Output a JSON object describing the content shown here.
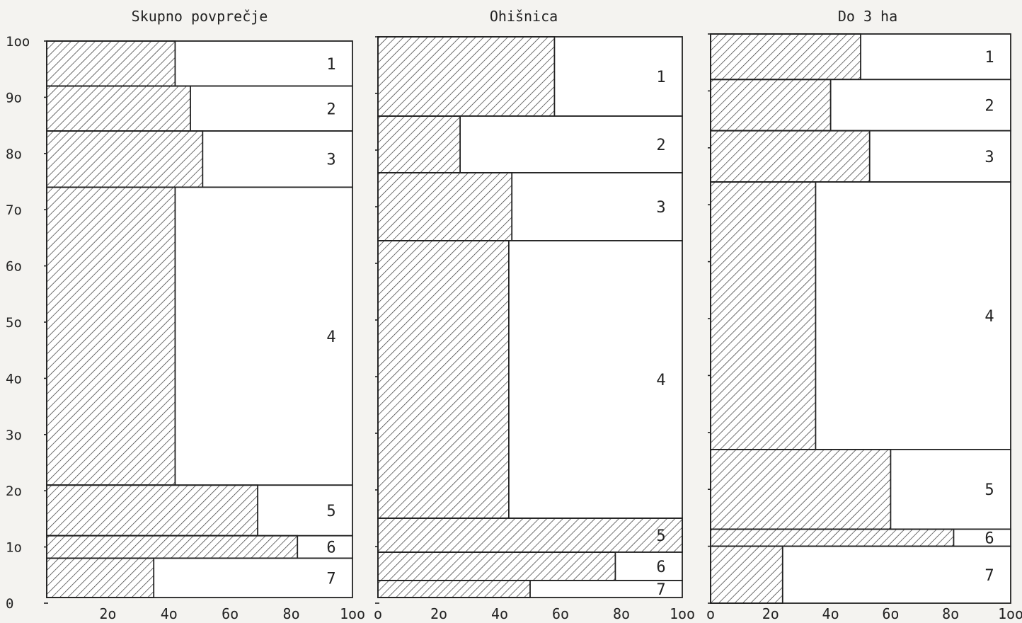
{
  "chart_data": [
    {
      "type": "bar",
      "title": "Skupno povprečje",
      "ylim": [
        0,
        100
      ],
      "xlim": [
        0,
        100
      ],
      "yticks": [
        "0",
        "1o",
        "2o",
        "3o",
        "4o",
        "5o",
        "6o",
        "7o",
        "8o",
        "9o",
        "1oo"
      ],
      "xticks": [
        "2o",
        "4o",
        "6o",
        "8o",
        "1oo"
      ],
      "segments": [
        {
          "label": "1",
          "start": 92,
          "end": 100,
          "hatched": 42
        },
        {
          "label": "2",
          "start": 84,
          "end": 92,
          "hatched": 47
        },
        {
          "label": "3",
          "start": 74,
          "end": 84,
          "hatched": 51
        },
        {
          "label": "4",
          "start": 21,
          "end": 74,
          "hatched": 42
        },
        {
          "label": "5",
          "start": 12,
          "end": 21,
          "hatched": 69
        },
        {
          "label": "6",
          "start": 8,
          "end": 12,
          "hatched": 82
        },
        {
          "label": "7",
          "start": 1,
          "end": 8,
          "hatched": 35
        }
      ]
    },
    {
      "type": "bar",
      "title": "Ohišnica",
      "ylim": [
        0,
        100
      ],
      "xlim": [
        0,
        100
      ],
      "yticks": [],
      "xticks": [
        "o",
        "2o",
        "4o",
        "6o",
        "8o",
        "1oo"
      ],
      "segments": [
        {
          "label": "1",
          "start": 86,
          "end": 100,
          "hatched": 58
        },
        {
          "label": "2",
          "start": 76,
          "end": 86,
          "hatched": 27
        },
        {
          "label": "3",
          "start": 64,
          "end": 76,
          "hatched": 44
        },
        {
          "label": "4",
          "start": 15,
          "end": 64,
          "hatched": 43
        },
        {
          "label": "5",
          "start": 9,
          "end": 15,
          "hatched": 100
        },
        {
          "label": "6",
          "start": 4,
          "end": 9,
          "hatched": 78
        },
        {
          "label": "7",
          "start": 1,
          "end": 4,
          "hatched": 50
        }
      ]
    },
    {
      "type": "bar",
      "title": "Do 3 ha",
      "ylim": [
        0,
        100
      ],
      "xlim": [
        0,
        100
      ],
      "yticks": [],
      "xticks": [
        "o",
        "2o",
        "4o",
        "6o",
        "8o",
        "1oo"
      ],
      "segments": [
        {
          "label": "1",
          "start": 92,
          "end": 100,
          "hatched": 50
        },
        {
          "label": "2",
          "start": 83,
          "end": 92,
          "hatched": 40
        },
        {
          "label": "3",
          "start": 74,
          "end": 83,
          "hatched": 53
        },
        {
          "label": "4",
          "start": 27,
          "end": 74,
          "hatched": 35
        },
        {
          "label": "5",
          "start": 13,
          "end": 27,
          "hatched": 60
        },
        {
          "label": "6",
          "start": 10,
          "end": 13,
          "hatched": 81
        },
        {
          "label": "7",
          "start": 0,
          "end": 10,
          "hatched": 24
        }
      ]
    }
  ],
  "colors": {
    "ink": "#222222",
    "paper": "#f4f3f0",
    "box_fill": "#ffffff"
  }
}
